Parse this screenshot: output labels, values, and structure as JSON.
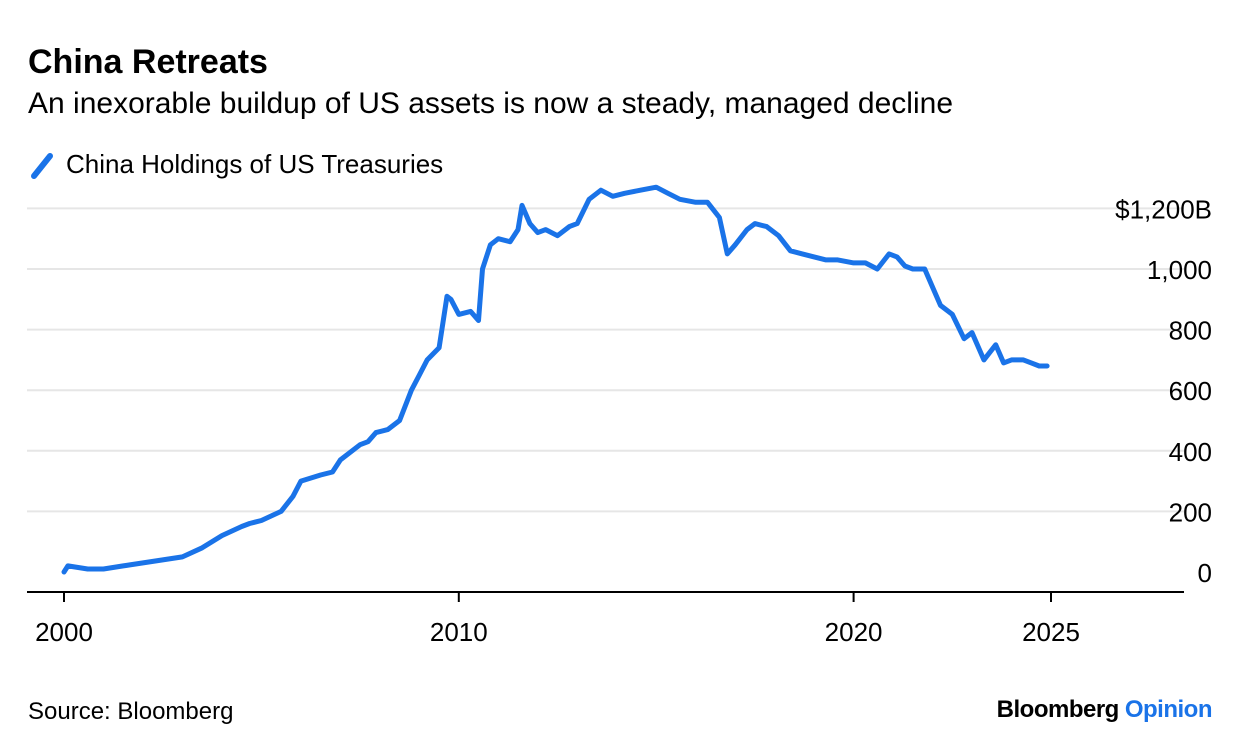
{
  "title": "China Retreats",
  "subtitle": "An inexorable buildup of US assets is now a steady, managed decline",
  "source": "Source: Bloomberg",
  "brand": {
    "name": "Bloomberg",
    "suffix": "Opinion",
    "suffix_color": "#1a73e8"
  },
  "colors": {
    "series": "#1a73e8",
    "grid": "#e6e6e6",
    "axis": "#000000"
  },
  "chart_data": {
    "type": "line",
    "title": "China Retreats",
    "subtitle": "An inexorable buildup of US assets is now a steady, managed decline",
    "xlabel": "",
    "ylabel": "",
    "xlim": [
      2000,
      2029
    ],
    "ylim": [
      0,
      1200
    ],
    "y_ticks": [
      0,
      200,
      400,
      600,
      800,
      1000,
      1200
    ],
    "y_tick_labels": [
      "0",
      "200",
      "400",
      "600",
      "800",
      "1,000",
      "$1,200B"
    ],
    "x_ticks": [
      2000,
      2010,
      2020,
      2025
    ],
    "x_tick_labels": [
      "2000",
      "2010",
      "2020",
      "2025"
    ],
    "grid": "horizontal",
    "y_axis_side": "right",
    "legend": "top-left",
    "series": [
      {
        "name": "China Holdings of US Treasuries",
        "color": "#1a73e8",
        "x": [
          2000.0,
          2000.1,
          2000.6,
          2001.0,
          2001.5,
          2002.0,
          2002.5,
          2003.0,
          2003.5,
          2004.0,
          2004.5,
          2004.7,
          2005.0,
          2005.5,
          2005.8,
          2006.0,
          2006.5,
          2006.8,
          2007.0,
          2007.5,
          2007.7,
          2007.9,
          2008.2,
          2008.5,
          2008.8,
          2009.0,
          2009.2,
          2009.5,
          2009.7,
          2009.8,
          2010.0,
          2010.3,
          2010.5,
          2010.6,
          2010.8,
          2011.0,
          2011.3,
          2011.5,
          2011.6,
          2011.8,
          2012.0,
          2012.2,
          2012.5,
          2012.8,
          2013.0,
          2013.3,
          2013.6,
          2013.9,
          2014.2,
          2014.6,
          2015.0,
          2015.3,
          2015.6,
          2016.0,
          2016.3,
          2016.6,
          2016.8,
          2017.0,
          2017.3,
          2017.5,
          2017.8,
          2018.1,
          2018.4,
          2018.7,
          2019.0,
          2019.3,
          2019.6,
          2020.0,
          2020.3,
          2020.6,
          2020.9,
          2021.1,
          2021.3,
          2021.5,
          2021.8,
          2022.0,
          2022.2,
          2022.5,
          2022.8,
          2023.0,
          2023.3,
          2023.6,
          2023.8,
          2024.0,
          2024.3,
          2024.5,
          2024.7,
          2024.9
        ],
        "values": [
          0,
          20,
          10,
          10,
          20,
          30,
          40,
          50,
          80,
          120,
          150,
          160,
          170,
          200,
          250,
          300,
          320,
          330,
          370,
          420,
          430,
          460,
          470,
          500,
          600,
          650,
          700,
          740,
          910,
          900,
          850,
          860,
          830,
          1000,
          1080,
          1100,
          1090,
          1130,
          1210,
          1150,
          1120,
          1130,
          1110,
          1140,
          1150,
          1230,
          1260,
          1240,
          1250,
          1260,
          1270,
          1250,
          1230,
          1220,
          1220,
          1170,
          1050,
          1080,
          1130,
          1150,
          1140,
          1110,
          1060,
          1050,
          1040,
          1030,
          1030,
          1020,
          1020,
          1000,
          1050,
          1040,
          1010,
          1000,
          1000,
          940,
          880,
          850,
          770,
          790,
          700,
          750,
          690,
          700,
          700,
          690,
          680,
          680
        ]
      }
    ]
  }
}
